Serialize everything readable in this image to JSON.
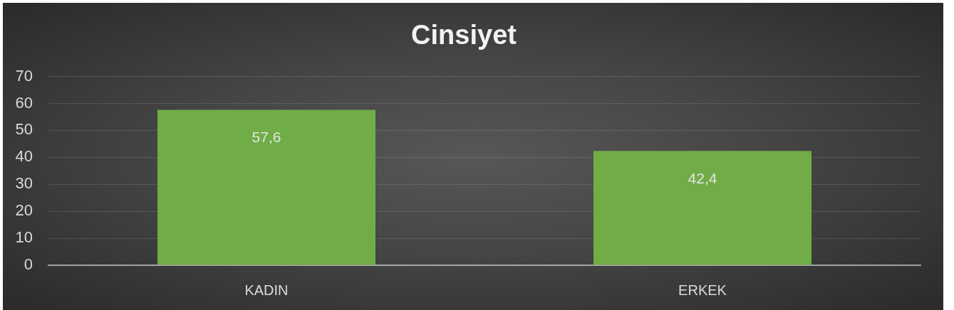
{
  "chart_data": {
    "type": "bar",
    "title": "Cinsiyet",
    "categories": [
      "KADIN",
      "ERKEK"
    ],
    "values": [
      57.6,
      42.4
    ],
    "color": "#70ad47",
    "value_labels": [
      "57,6",
      "42,4"
    ],
    "ylim": [
      0,
      70
    ],
    "yticks": [
      0,
      10,
      20,
      30,
      40,
      50,
      60,
      70
    ],
    "grid": "y"
  }
}
